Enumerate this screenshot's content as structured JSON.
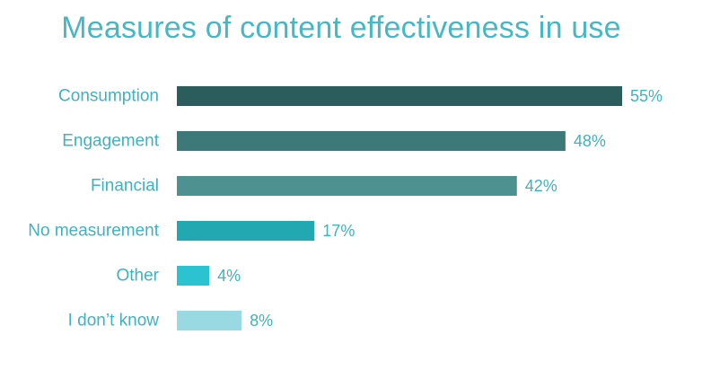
{
  "chart_data": {
    "type": "bar",
    "orientation": "horizontal",
    "title": "Measures of content effectiveness in use",
    "xlabel": "",
    "ylabel": "",
    "xlim": [
      0,
      55
    ],
    "grid": false,
    "categories": [
      "Consumption",
      "Engagement",
      "Financial",
      "No measurement",
      "Other",
      "I don’t know"
    ],
    "values": [
      55,
      48,
      42,
      17,
      4,
      8
    ],
    "value_labels": [
      "55%",
      "48%",
      "42%",
      "17%",
      "4%",
      "8%"
    ],
    "colors": [
      "#2b5d5d",
      "#3e7979",
      "#4d9191",
      "#22a8b0",
      "#2bc3cf",
      "#98d9e2"
    ],
    "text_color": "#46b8c4"
  }
}
